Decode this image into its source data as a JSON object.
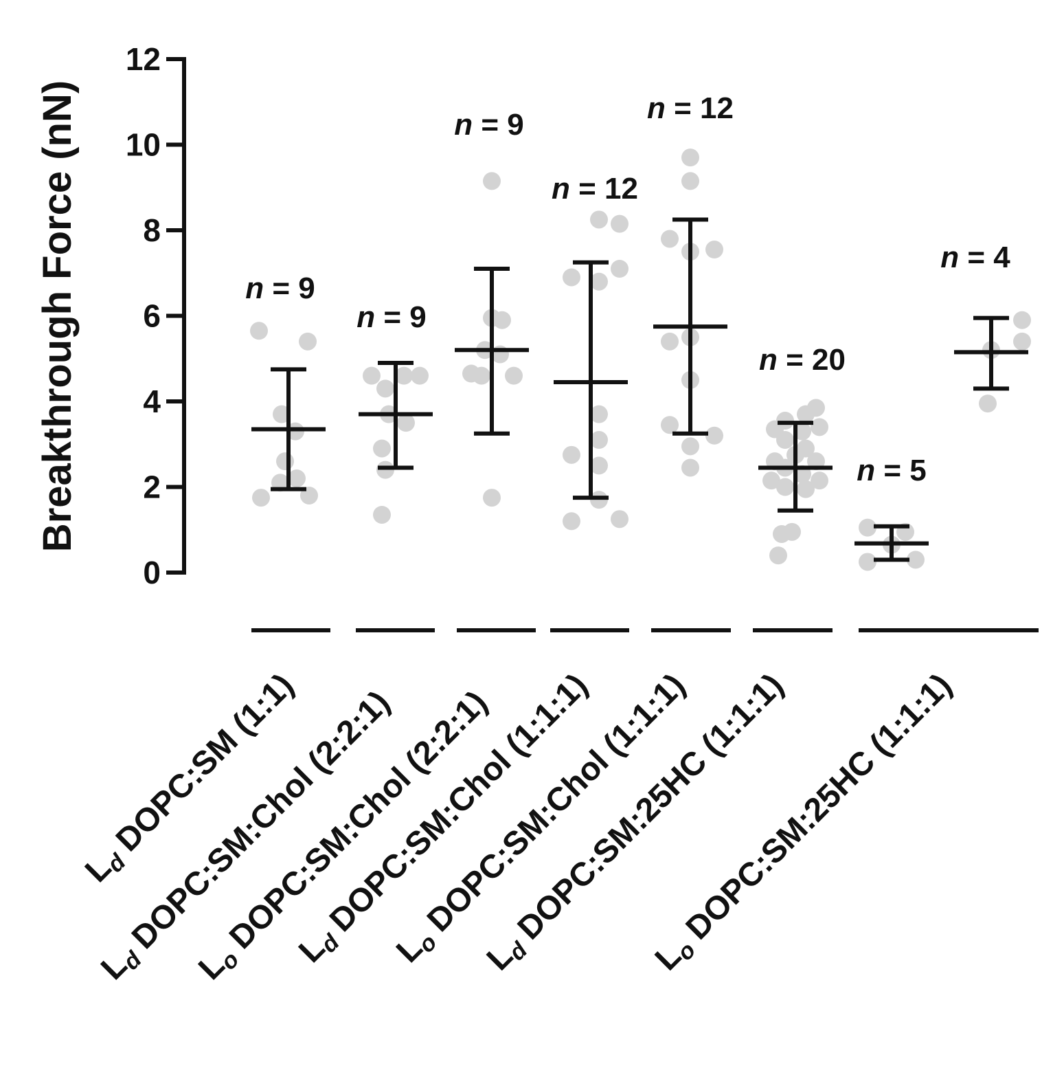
{
  "chart_data": {
    "type": "scatter",
    "ylabel": "Breakthrough Force (nN)",
    "ylim": [
      0,
      12
    ],
    "yticks": [
      0,
      2,
      4,
      6,
      8,
      10,
      12
    ],
    "groups": [
      {
        "phase": "L",
        "phase_sub": "d",
        "label": "DOPC:SM (1:1)",
        "n_label": "= 9",
        "n": 9,
        "mean": 3.35,
        "sd_low": 1.95,
        "sd_high": 4.75,
        "points": [
          [
            -0.43,
            5.65
          ],
          [
            0.28,
            5.4
          ],
          [
            -0.1,
            3.7
          ],
          [
            0.1,
            3.3
          ],
          [
            -0.05,
            2.6
          ],
          [
            0.12,
            2.2
          ],
          [
            -0.12,
            2.1
          ],
          [
            -0.4,
            1.75
          ],
          [
            0.3,
            1.8
          ]
        ]
      },
      {
        "phase": "L",
        "phase_sub": "d",
        "label": "DOPC:SM:Chol (2:2:1)",
        "n_label": "= 9",
        "n": 9,
        "mean": 3.7,
        "sd_low": 2.45,
        "sd_high": 4.9,
        "points": [
          [
            -0.35,
            4.6
          ],
          [
            0.35,
            4.6
          ],
          [
            0.12,
            4.6
          ],
          [
            -0.15,
            4.3
          ],
          [
            -0.1,
            3.7
          ],
          [
            0.15,
            3.5
          ],
          [
            -0.2,
            2.9
          ],
          [
            -0.15,
            2.4
          ],
          [
            -0.2,
            1.35
          ]
        ]
      },
      {
        "phase": "L",
        "phase_sub": "o",
        "label": "DOPC:SM:Chol (2:2:1)",
        "n_label": "= 9",
        "n": 9,
        "mean": 5.2,
        "sd_low": 3.25,
        "sd_high": 7.1,
        "points": [
          [
            0.0,
            9.15
          ],
          [
            0.0,
            5.95
          ],
          [
            0.15,
            5.9
          ],
          [
            -0.1,
            5.2
          ],
          [
            0.12,
            5.1
          ],
          [
            -0.3,
            4.65
          ],
          [
            -0.15,
            4.6
          ],
          [
            0.32,
            4.6
          ],
          [
            0.0,
            1.75
          ]
        ]
      },
      {
        "phase": "L",
        "phase_sub": "d",
        "label": "DOPC:SM:Chol (1:1:1)",
        "n_label": "= 12",
        "n": 12,
        "mean": 4.45,
        "sd_low": 1.75,
        "sd_high": 7.25,
        "points": [
          [
            0.12,
            8.25
          ],
          [
            0.42,
            8.15
          ],
          [
            0.42,
            7.1
          ],
          [
            -0.28,
            6.9
          ],
          [
            0.12,
            6.8
          ],
          [
            0.12,
            3.7
          ],
          [
            0.12,
            3.1
          ],
          [
            -0.28,
            2.75
          ],
          [
            0.12,
            2.5
          ],
          [
            0.12,
            1.7
          ],
          [
            -0.28,
            1.2
          ],
          [
            0.42,
            1.25
          ]
        ]
      },
      {
        "phase": "L",
        "phase_sub": "o",
        "label": "DOPC:SM:Chol (1:1:1)",
        "n_label": "= 12",
        "n": 12,
        "mean": 5.75,
        "sd_low": 3.25,
        "sd_high": 8.25,
        "points": [
          [
            0.0,
            9.7
          ],
          [
            0.0,
            9.15
          ],
          [
            -0.3,
            7.8
          ],
          [
            0.0,
            7.5
          ],
          [
            0.35,
            7.55
          ],
          [
            -0.3,
            5.4
          ],
          [
            0.0,
            5.5
          ],
          [
            0.0,
            4.5
          ],
          [
            -0.3,
            3.45
          ],
          [
            0.35,
            3.2
          ],
          [
            0.0,
            2.95
          ],
          [
            0.0,
            2.45
          ]
        ]
      },
      {
        "phase": "L",
        "phase_sub": "d",
        "label": "DOPC:SM:25HC (1:1:1)",
        "n_label": "= 20",
        "n": 20,
        "mean": 2.45,
        "sd_low": 1.45,
        "sd_high": 3.5,
        "points": [
          [
            0.3,
            3.85
          ],
          [
            0.15,
            3.7
          ],
          [
            -0.15,
            3.55
          ],
          [
            -0.3,
            3.35
          ],
          [
            0.1,
            3.3
          ],
          [
            0.35,
            3.4
          ],
          [
            -0.15,
            3.1
          ],
          [
            0.15,
            2.9
          ],
          [
            0.0,
            2.75
          ],
          [
            -0.3,
            2.6
          ],
          [
            0.3,
            2.6
          ],
          [
            -0.15,
            2.45
          ],
          [
            0.1,
            2.3
          ],
          [
            -0.35,
            2.15
          ],
          [
            0.35,
            2.15
          ],
          [
            -0.15,
            2.0
          ],
          [
            0.15,
            1.95
          ],
          [
            -0.05,
            0.95
          ],
          [
            -0.2,
            0.9
          ],
          [
            -0.25,
            0.4
          ]
        ]
      },
      {
        "phase": "L",
        "phase_sub": "o",
        "label": "DOPC:SM:25HC (1:1:1)",
        "n_label": "= 5",
        "n": 5,
        "mean": 0.68,
        "sd_low": 0.3,
        "sd_high": 1.08,
        "points": [
          [
            -0.35,
            1.05
          ],
          [
            0.2,
            0.95
          ],
          [
            0.0,
            0.65
          ],
          [
            -0.35,
            0.25
          ],
          [
            0.35,
            0.3
          ]
        ]
      },
      {
        "phase": "",
        "phase_sub": "",
        "label": "",
        "n_label": "= 4",
        "n": 4,
        "mean": 5.15,
        "sd_low": 4.3,
        "sd_high": 5.95,
        "points": [
          [
            0.45,
            5.9
          ],
          [
            0.45,
            5.4
          ],
          [
            0.0,
            5.2
          ],
          [
            -0.05,
            3.95
          ]
        ]
      }
    ]
  }
}
